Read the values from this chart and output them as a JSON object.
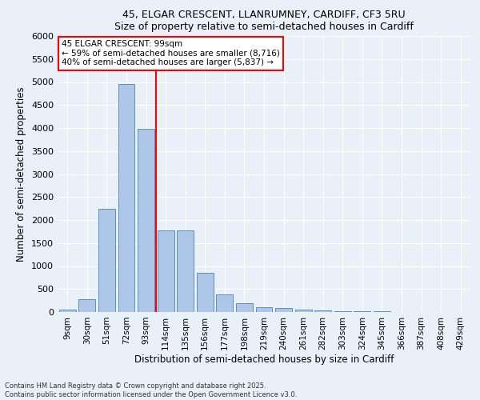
{
  "title1": "45, ELGAR CRESCENT, LLANRUMNEY, CARDIFF, CF3 5RU",
  "title2": "Size of property relative to semi-detached houses in Cardiff",
  "xlabel": "Distribution of semi-detached houses by size in Cardiff",
  "ylabel": "Number of semi-detached properties",
  "bar_labels": [
    "9sqm",
    "30sqm",
    "51sqm",
    "72sqm",
    "93sqm",
    "114sqm",
    "135sqm",
    "156sqm",
    "177sqm",
    "198sqm",
    "219sqm",
    "240sqm",
    "261sqm",
    "282sqm",
    "303sqm",
    "324sqm",
    "345sqm",
    "366sqm",
    "387sqm",
    "408sqm",
    "429sqm"
  ],
  "bar_values": [
    50,
    270,
    2250,
    4950,
    3980,
    1780,
    1780,
    850,
    390,
    185,
    110,
    80,
    50,
    30,
    20,
    15,
    10,
    8,
    5,
    5,
    3
  ],
  "bar_color": "#aec6e8",
  "bar_edge_color": "#5a8fc0",
  "vline_color": "red",
  "vline_x": 4.5,
  "annotation_title": "45 ELGAR CRESCENT: 99sqm",
  "annotation_line1": "← 59% of semi-detached houses are smaller (8,716)",
  "annotation_line2": "40% of semi-detached houses are larger (5,837) →",
  "annotation_box_color": "white",
  "annotation_box_edge": "red",
  "ylim": [
    0,
    6000
  ],
  "yticks": [
    0,
    500,
    1000,
    1500,
    2000,
    2500,
    3000,
    3500,
    4000,
    4500,
    5000,
    5500,
    6000
  ],
  "bg_color": "#eaf0f8",
  "plot_bg_color": "#eaf0f8",
  "footer1": "Contains HM Land Registry data © Crown copyright and database right 2025.",
  "footer2": "Contains public sector information licensed under the Open Government Licence v3.0."
}
